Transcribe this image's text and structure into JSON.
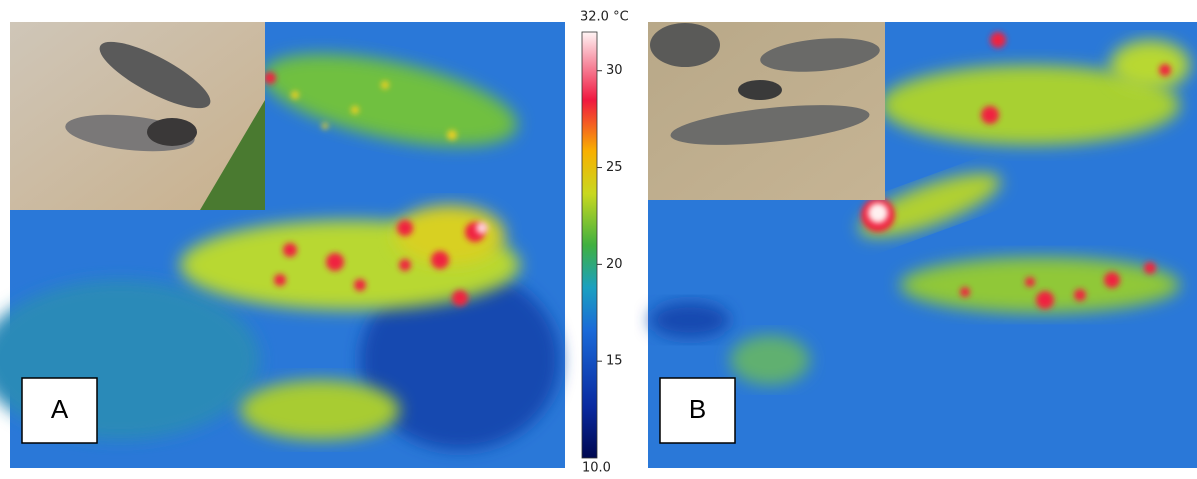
{
  "panels": [
    {
      "label": "A"
    },
    {
      "label": "B"
    }
  ],
  "colorbar": {
    "max": {
      "value": 32,
      "label": "32.0 °C"
    },
    "min": {
      "value": 10,
      "label": "10.0"
    },
    "ticks": [
      30,
      25,
      20,
      15
    ]
  }
}
